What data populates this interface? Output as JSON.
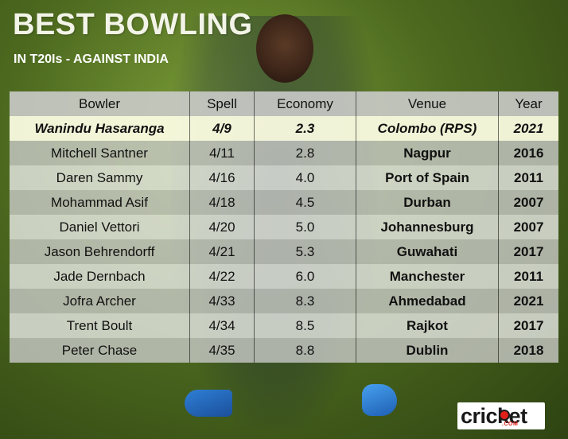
{
  "title": "BEST BOWLING",
  "subtitle": "IN T20Is - AGAINST INDIA",
  "table": {
    "headers": [
      "Bowler",
      "Spell",
      "Economy",
      "Venue",
      "Year"
    ],
    "rows": [
      [
        "Wanindu Hasaranga",
        "4/9",
        "2.3",
        "Colombo (RPS)",
        "2021"
      ],
      [
        "Mitchell Santner",
        "4/11",
        "2.8",
        "Nagpur",
        "2016"
      ],
      [
        "Daren Sammy",
        "4/16",
        "4.0",
        "Port of Spain",
        "2011"
      ],
      [
        "Mohammad Asif",
        "4/18",
        "4.5",
        "Durban",
        "2007"
      ],
      [
        "Daniel Vettori",
        "4/20",
        "5.0",
        "Johannesburg",
        "2007"
      ],
      [
        "Jason Behrendorff",
        "4/21",
        "5.3",
        "Guwahati",
        "2017"
      ],
      [
        "Jade Dernbach",
        "4/22",
        "6.0",
        "Manchester",
        "2011"
      ],
      [
        "Jofra Archer",
        "4/33",
        "8.3",
        "Ahmedabad",
        "2021"
      ],
      [
        "Trent Boult",
        "4/34",
        "8.5",
        "Rajkot",
        "2017"
      ],
      [
        "Peter Chase",
        "4/35",
        "8.8",
        "Dublin",
        "2018"
      ]
    ]
  },
  "logo": {
    "main": "cricket",
    "sub": ".COM"
  }
}
